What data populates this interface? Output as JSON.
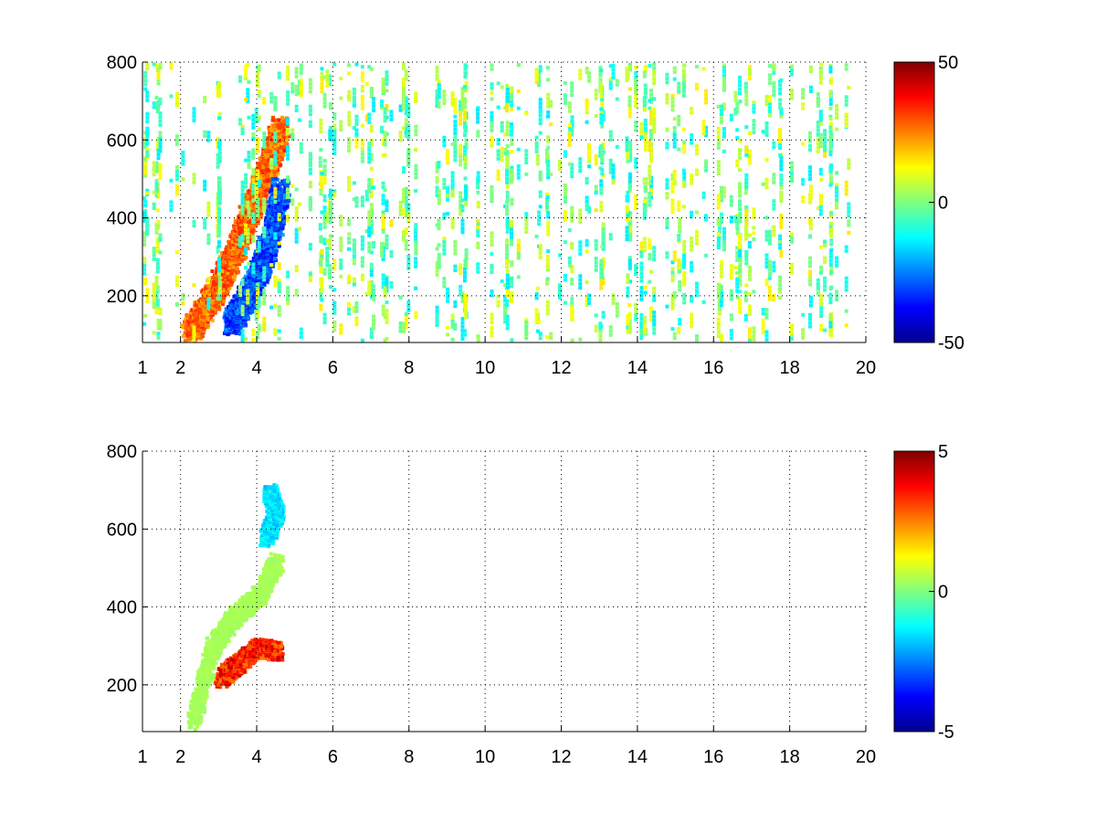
{
  "chart_data": [
    {
      "type": "heatmap",
      "title": "",
      "xlabel": "",
      "ylabel": "",
      "x_scale": "log",
      "xlim": [
        1,
        20
      ],
      "ylim": [
        80,
        800
      ],
      "xticks": [
        1,
        2,
        4,
        6,
        8,
        10,
        12,
        14,
        16,
        18,
        20
      ],
      "xtick_labels": [
        "1",
        "2",
        "4",
        "6",
        "8",
        "10",
        "12",
        "14",
        "16",
        "18",
        "20"
      ],
      "yticks": [
        200,
        400,
        600,
        800
      ],
      "ytick_labels": [
        "200",
        "400",
        "600",
        "800"
      ],
      "grid": true,
      "colormap": "jet",
      "clim": [
        -50,
        50
      ],
      "colorbar_ticks": [
        50,
        0,
        -50
      ],
      "colorbar_labels": [
        "50",
        "0",
        "-50"
      ],
      "features": [
        {
          "description": "positive band",
          "value": 35,
          "points": [
            [
              2.2,
              110
            ],
            [
              2.8,
              200
            ],
            [
              3.4,
              320
            ],
            [
              3.8,
              420
            ],
            [
              4.2,
              520
            ],
            [
              4.6,
              640
            ]
          ]
        },
        {
          "description": "negative band",
          "value": -38,
          "points": [
            [
              3.3,
              130
            ],
            [
              3.7,
              200
            ],
            [
              4.1,
              280
            ],
            [
              4.4,
              380
            ],
            [
              4.6,
              480
            ]
          ]
        },
        {
          "description": "sparse near-zero scatter",
          "x_range": [
            1,
            20
          ],
          "value_range": [
            -15,
            15
          ]
        }
      ]
    },
    {
      "type": "heatmap",
      "title": "",
      "xlabel": "",
      "ylabel": "",
      "x_scale": "log",
      "xlim": [
        1,
        20
      ],
      "ylim": [
        80,
        800
      ],
      "xticks": [
        1,
        2,
        4,
        6,
        8,
        10,
        12,
        14,
        16,
        18,
        20
      ],
      "xtick_labels": [
        "1",
        "2",
        "4",
        "6",
        "8",
        "10",
        "12",
        "14",
        "16",
        "18",
        "20"
      ],
      "yticks": [
        200,
        400,
        600,
        800
      ],
      "ytick_labels": [
        "200",
        "400",
        "600",
        "800"
      ],
      "grid": true,
      "colormap": "jet",
      "clim": [
        -5,
        5
      ],
      "colorbar_ticks": [
        5,
        0,
        -5
      ],
      "colorbar_labels": [
        "5",
        "0",
        "-5"
      ],
      "features": [
        {
          "description": "strong positive cluster",
          "value": 4.5,
          "points": [
            [
              3.0,
              220
            ],
            [
              3.5,
              260
            ],
            [
              4.0,
              300
            ],
            [
              4.5,
              290
            ]
          ]
        },
        {
          "description": "near-zero band",
          "value": 0.5,
          "points": [
            [
              2.3,
              110
            ],
            [
              2.8,
              300
            ],
            [
              3.4,
              380
            ],
            [
              4.0,
              430
            ],
            [
              4.5,
              520
            ]
          ]
        },
        {
          "description": "negative upper region",
          "value": -2,
          "points": [
            [
              4.2,
              580
            ],
            [
              4.5,
              640
            ],
            [
              4.3,
              700
            ]
          ]
        }
      ]
    }
  ]
}
